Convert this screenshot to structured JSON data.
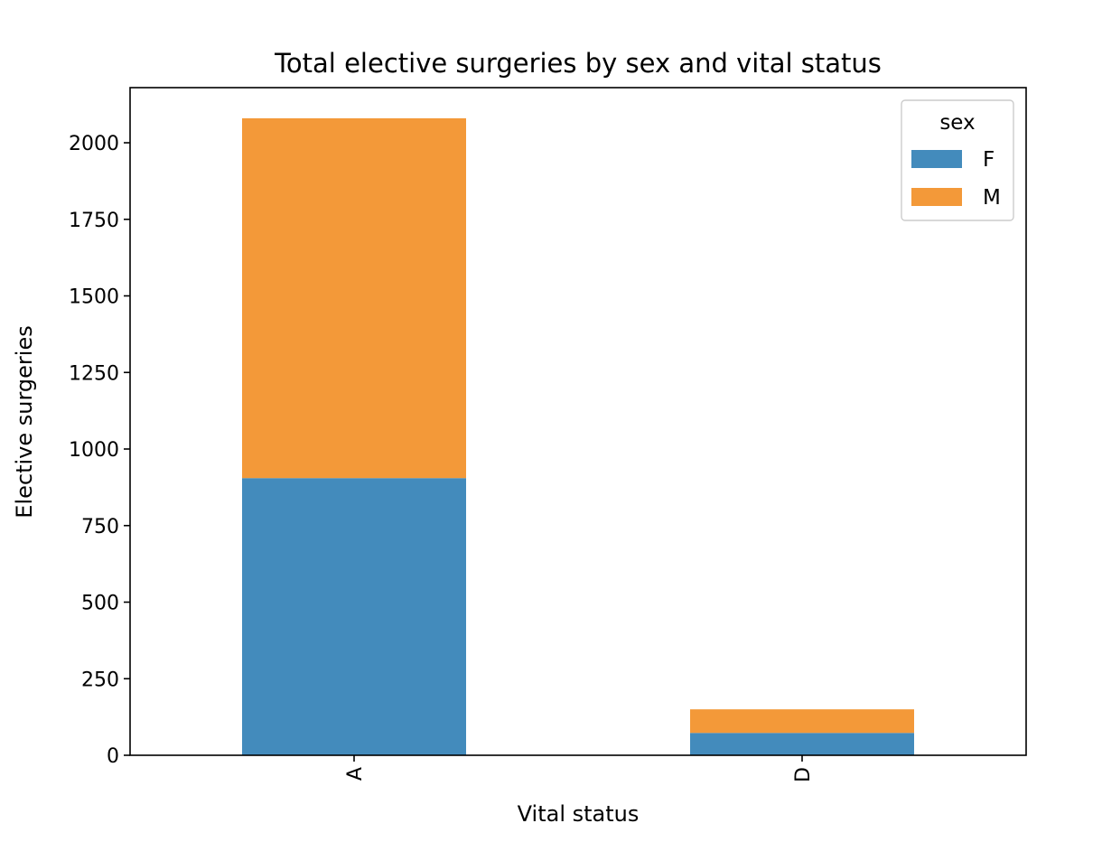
{
  "chart_data": {
    "type": "bar",
    "stacked": true,
    "title": "Total elective surgeries by sex and vital status",
    "xlabel": "Vital status",
    "ylabel": "Elective surgeries",
    "categories": [
      "A",
      "D"
    ],
    "ylim": [
      0,
      2180
    ],
    "yticks": [
      0,
      250,
      500,
      750,
      1000,
      1250,
      1500,
      1750,
      2000
    ],
    "grid": false,
    "legend": {
      "title": "sex",
      "placement": "top-right"
    },
    "series": [
      {
        "name": "F",
        "color": "#438bbc",
        "values": [
          905,
          73
        ]
      },
      {
        "name": "M",
        "color": "#f39939",
        "values": [
          1175,
          77
        ]
      }
    ]
  }
}
